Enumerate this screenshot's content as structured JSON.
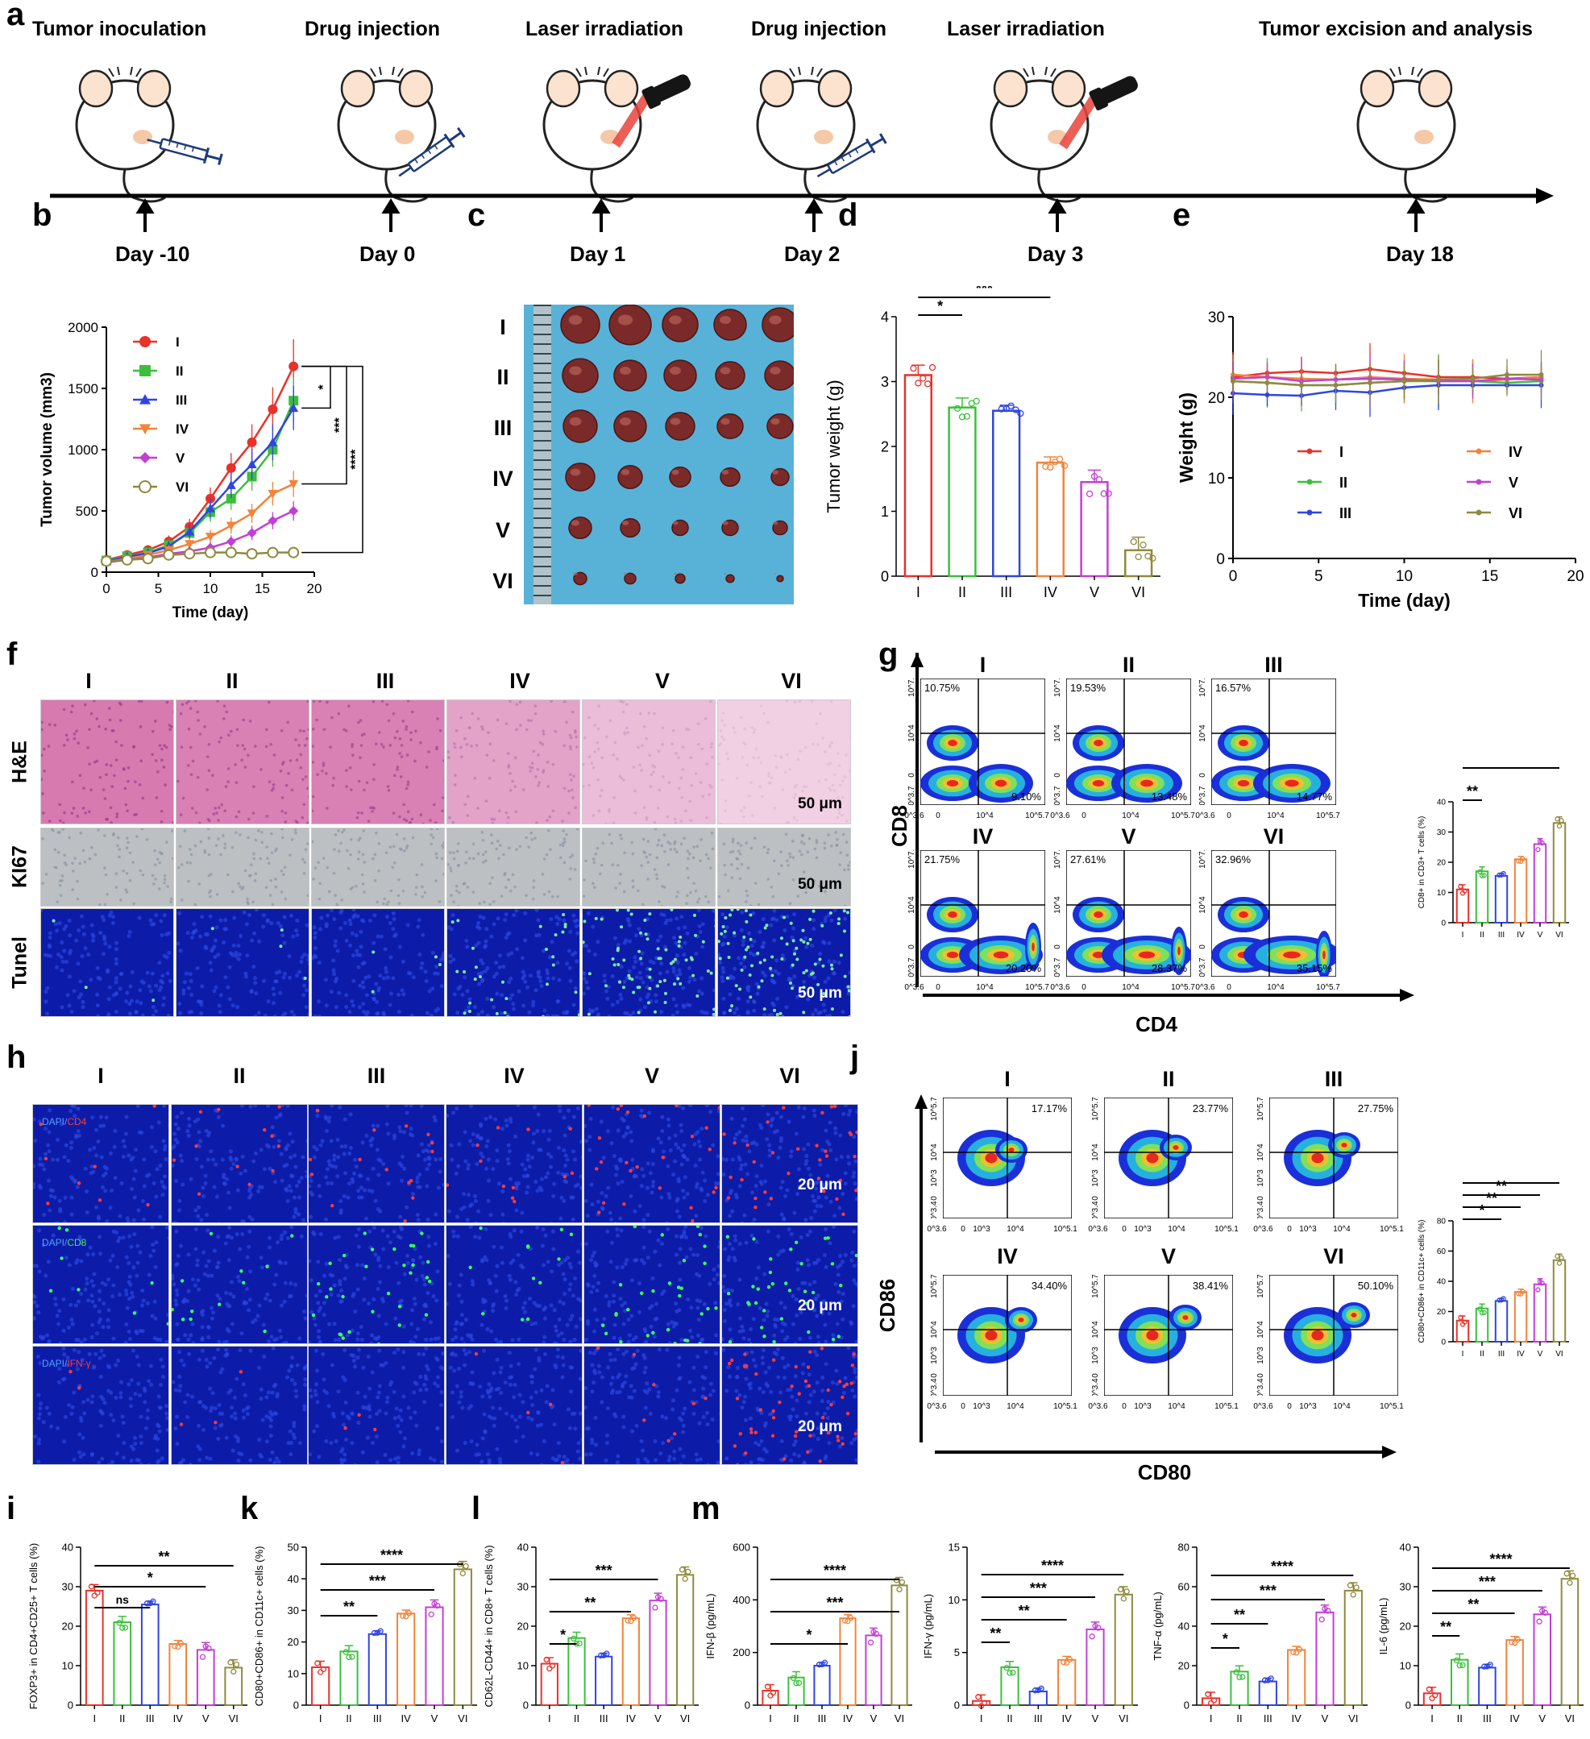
{
  "panel_letters": {
    "a": "a",
    "b": "b",
    "c": "c",
    "d": "d",
    "e": "e",
    "f": "f",
    "g": "g",
    "h": "h",
    "i": "i",
    "j": "j",
    "k": "k",
    "l": "l",
    "m": "m"
  },
  "timeline": {
    "steps": [
      "Tumor inoculation",
      "Drug injection",
      "Laser irradiation",
      "Drug injection",
      "Laser irradiation",
      "Tumor excision and analysis"
    ],
    "days": [
      "Day -10",
      "Day 0",
      "Day 1",
      "Day 2",
      "Day 3",
      "Day 18"
    ]
  },
  "groups": [
    "I",
    "II",
    "III",
    "IV",
    "V",
    "VI"
  ],
  "colors": {
    "I": "#e8322a",
    "II": "#3bbf3b",
    "III": "#2f45e0",
    "IV": "#f0843a",
    "V": "#c23fd4",
    "VI": "#8f8a3e"
  },
  "panel_f": {
    "rows": [
      "H&E",
      "KI67",
      "Tunel"
    ],
    "scale": "50 μm"
  },
  "panel_h": {
    "rows": [
      "DAPI/CD4",
      "DAPI/CD8",
      "DAPI/IFN-γ"
    ],
    "scale": "20 μm"
  },
  "panel_g": {
    "xlabel": "CD4",
    "ylabel": "CD8",
    "ul": [
      "10.75%",
      "19.53%",
      "16.57%",
      "21.75%",
      "27.61%",
      "32.96%"
    ],
    "lr": [
      "9.10%",
      "13.48%",
      "14.77%",
      "20.20%",
      "28.37%",
      "35.15%"
    ],
    "xticks": [
      "-10^3.6",
      "0",
      "10^4",
      "10^5.7"
    ],
    "yticks": [
      "10^7.4",
      "10^4",
      "0",
      "-10^3.7"
    ]
  },
  "panel_j": {
    "xlabel": "CD80",
    "ylabel": "CD86",
    "ur": [
      "17.17%",
      "23.77%",
      "27.75%",
      "34.40%",
      "38.41%",
      "50.10%"
    ],
    "xticks": [
      "-10^3.6",
      "0",
      "10^3",
      "10^4",
      "10^5.1"
    ],
    "yticks": [
      "10^5.7",
      "10^4",
      "10^3",
      "0",
      "-10^3.4"
    ]
  },
  "chart_data": [
    {
      "panel": "b",
      "type": "line",
      "xlabel": "Time (day)",
      "ylabel": "Tumor volume (mm3)",
      "xlim": [
        0,
        20
      ],
      "ylim": [
        0,
        2000
      ],
      "xticks": [
        0,
        5,
        10,
        15,
        20
      ],
      "yticks": [
        0,
        500,
        1000,
        1500,
        2000
      ],
      "x": [
        0,
        2,
        4,
        6,
        8,
        10,
        12,
        14,
        16,
        18
      ],
      "series": [
        {
          "name": "I",
          "values": [
            100,
            140,
            180,
            250,
            370,
            600,
            850,
            1060,
            1330,
            1680
          ]
        },
        {
          "name": "II",
          "values": [
            95,
            130,
            160,
            220,
            320,
            490,
            600,
            780,
            1000,
            1400
          ]
        },
        {
          "name": "III",
          "values": [
            90,
            125,
            155,
            210,
            330,
            520,
            710,
            880,
            1060,
            1340
          ]
        },
        {
          "name": "IV",
          "values": [
            85,
            110,
            140,
            180,
            230,
            290,
            380,
            480,
            640,
            720
          ]
        },
        {
          "name": "V",
          "values": [
            80,
            100,
            120,
            150,
            170,
            200,
            250,
            320,
            420,
            500
          ]
        },
        {
          "name": "VI",
          "values": [
            90,
            100,
            110,
            140,
            150,
            160,
            160,
            150,
            160,
            160
          ]
        }
      ],
      "significance": [
        "*",
        "***",
        "****"
      ]
    },
    {
      "panel": "d",
      "type": "bar",
      "ylabel": "Tumor weight (g)",
      "ylim": [
        0,
        4
      ],
      "yticks": [
        0,
        1,
        2,
        3,
        4
      ],
      "categories": [
        "I",
        "II",
        "III",
        "IV",
        "V",
        "VI"
      ],
      "values": [
        3.1,
        2.6,
        2.55,
        1.75,
        1.45,
        0.4
      ],
      "significance": [
        "*",
        "***",
        "****"
      ]
    },
    {
      "panel": "e",
      "type": "line",
      "xlabel": "Time (day)",
      "ylabel": "Weight (g)",
      "xlim": [
        0,
        20
      ],
      "ylim": [
        0,
        30
      ],
      "xticks": [
        0,
        5,
        10,
        15,
        20
      ],
      "yticks": [
        0,
        10,
        20,
        30
      ],
      "x": [
        0,
        2,
        4,
        6,
        8,
        10,
        12,
        14,
        16,
        18
      ],
      "series": [
        {
          "name": "I",
          "values": [
            22.5,
            23,
            23.2,
            23,
            23.5,
            23,
            22.5,
            22.5,
            22.3,
            22.5
          ]
        },
        {
          "name": "II",
          "values": [
            22,
            21.8,
            21.5,
            21.5,
            21.8,
            22,
            22,
            22,
            21.8,
            22
          ]
        },
        {
          "name": "III",
          "values": [
            20.5,
            20.3,
            20.2,
            20.8,
            20.6,
            21.2,
            21.5,
            21.5,
            21.5,
            21.5
          ]
        },
        {
          "name": "IV",
          "values": [
            22.8,
            22.5,
            22.3,
            22.2,
            22.5,
            22.3,
            22.2,
            22,
            22.2,
            22.5
          ]
        },
        {
          "name": "V",
          "values": [
            22.3,
            22.5,
            22,
            22.2,
            22.3,
            22.2,
            22,
            22,
            22.3,
            22.2
          ]
        },
        {
          "name": "VI",
          "values": [
            22,
            21.8,
            21.5,
            21.5,
            21.8,
            22,
            22.2,
            22.3,
            22.8,
            22.8
          ]
        }
      ]
    },
    {
      "panel": "g",
      "type": "bar",
      "ylabel": "CD8+ in CD3+ T cells (%)",
      "ylim": [
        0,
        40
      ],
      "yticks": [
        0,
        10,
        20,
        30,
        40
      ],
      "categories": [
        "I",
        "II",
        "III",
        "IV",
        "V",
        "VI"
      ],
      "values": [
        11,
        17,
        15.5,
        21,
        26,
        33
      ],
      "significance": [
        "**",
        "***"
      ]
    },
    {
      "panel": "j",
      "type": "bar",
      "ylabel": "CD80+CD86+ in CD11c+ cells (%)",
      "ylim": [
        0,
        80
      ],
      "yticks": [
        0,
        20,
        40,
        60,
        80
      ],
      "categories": [
        "I",
        "II",
        "III",
        "IV",
        "V",
        "VI"
      ],
      "values": [
        14,
        22,
        27,
        33,
        38,
        54
      ],
      "significance": [
        "*",
        "**",
        "**",
        "****"
      ]
    },
    {
      "panel": "i",
      "type": "bar",
      "ylabel": "FOXP3+ in CD4+CD25+ T cells (%)",
      "ylim": [
        0,
        40
      ],
      "yticks": [
        0,
        10,
        20,
        30,
        40
      ],
      "categories": [
        "I",
        "II",
        "III",
        "IV",
        "V",
        "VI"
      ],
      "values": [
        29,
        21,
        25.5,
        15.5,
        14,
        9.5
      ],
      "significance": [
        "ns",
        "*",
        "**"
      ]
    },
    {
      "panel": "k",
      "type": "bar",
      "ylabel": "CD80+CD86+ in CD11c+ cells (%)",
      "ylim": [
        0,
        50
      ],
      "yticks": [
        0,
        10,
        20,
        30,
        40,
        50
      ],
      "categories": [
        "I",
        "II",
        "III",
        "IV",
        "V",
        "VI"
      ],
      "values": [
        12,
        17,
        22.5,
        29,
        31,
        43
      ],
      "significance": [
        "**",
        "***",
        "****"
      ]
    },
    {
      "panel": "l",
      "type": "bar",
      "ylabel": "CD62L-CD44+ in CD8+ T cells (%)",
      "ylim": [
        0,
        40
      ],
      "yticks": [
        0,
        10,
        20,
        30,
        40
      ],
      "categories": [
        "I",
        "II",
        "III",
        "IV",
        "V",
        "VI"
      ],
      "values": [
        10.5,
        17,
        12.3,
        22,
        26.5,
        33
      ],
      "significance": [
        "*",
        "**",
        "***"
      ]
    },
    {
      "panel": "m1",
      "type": "bar",
      "ylabel": "IFN-β (pg/mL)",
      "ylim": [
        0,
        600
      ],
      "yticks": [
        0,
        200,
        400,
        600
      ],
      "categories": [
        "I",
        "II",
        "III",
        "IV",
        "V",
        "VI"
      ],
      "values": [
        55,
        105,
        150,
        330,
        265,
        455
      ],
      "significance": [
        "*",
        "***",
        "****"
      ]
    },
    {
      "panel": "m2",
      "type": "bar",
      "ylabel": "IFN-γ (pg/mL)",
      "ylim": [
        0,
        15
      ],
      "yticks": [
        0,
        5,
        10,
        15
      ],
      "categories": [
        "I",
        "II",
        "III",
        "IV",
        "V",
        "VI"
      ],
      "values": [
        0.4,
        3.6,
        1.3,
        4.3,
        7.2,
        10.5
      ],
      "significance": [
        "**",
        "**",
        "***",
        "****"
      ]
    },
    {
      "panel": "m3",
      "type": "bar",
      "ylabel": "TNF-α (pg/mL)",
      "ylim": [
        0,
        80
      ],
      "yticks": [
        0,
        20,
        40,
        60,
        80
      ],
      "categories": [
        "I",
        "II",
        "III",
        "IV",
        "V",
        "VI"
      ],
      "values": [
        3.5,
        17,
        12,
        28,
        47,
        58
      ],
      "significance": [
        "*",
        "**",
        "***",
        "****"
      ]
    },
    {
      "panel": "m4",
      "type": "bar",
      "ylabel": "IL-6 (pg/mL)",
      "ylim": [
        0,
        40
      ],
      "yticks": [
        0,
        10,
        20,
        30,
        40
      ],
      "categories": [
        "I",
        "II",
        "III",
        "IV",
        "V",
        "VI"
      ],
      "values": [
        3,
        11.5,
        9.5,
        16.5,
        23,
        32
      ],
      "significance": [
        "**",
        "**",
        "***",
        "****"
      ]
    }
  ]
}
